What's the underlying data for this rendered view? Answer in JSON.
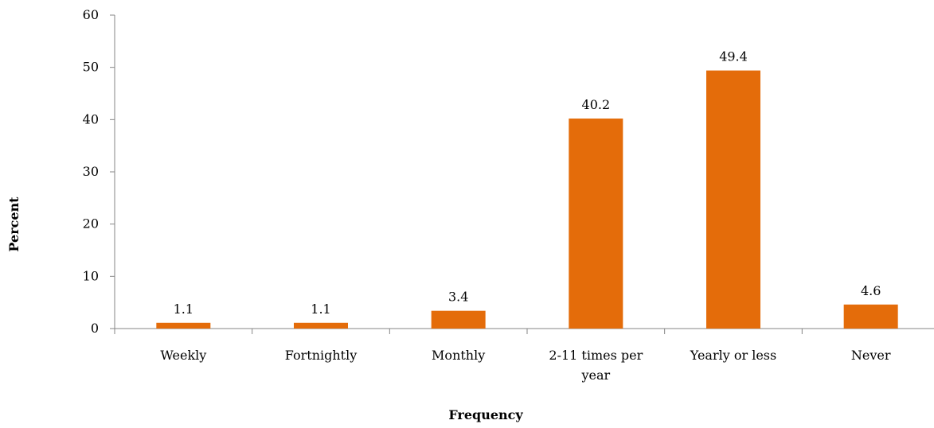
{
  "chart_data": {
    "type": "bar",
    "categories": [
      [
        "Weekly"
      ],
      [
        "Fortnightly"
      ],
      [
        "Monthly"
      ],
      [
        "2-11 times per",
        "year"
      ],
      [
        "Yearly or less"
      ],
      [
        "Never"
      ]
    ],
    "values": [
      1.1,
      1.1,
      3.4,
      40.2,
      49.4,
      4.6
    ],
    "data_labels": [
      "1.1",
      "1.1",
      "3.4",
      "40.2",
      "49.4",
      "4.6"
    ],
    "yticks": [
      0,
      10,
      20,
      30,
      40,
      50,
      60
    ],
    "ylim": [
      0,
      60
    ],
    "xlabel": "Frequency",
    "ylabel": "Percent",
    "bar_color": "#E46C0A",
    "grid": false,
    "legend": "none"
  }
}
